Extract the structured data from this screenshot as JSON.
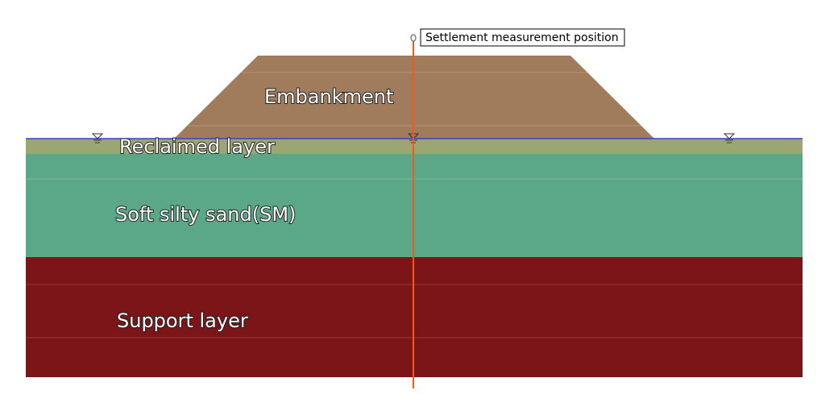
{
  "layers": [
    {
      "label": "Embankment"
    },
    {
      "label": "Reclaimed layer"
    },
    {
      "label": "Soft silty sand(SM)"
    },
    {
      "label": "Support layer"
    }
  ],
  "marker": {
    "label": "Settlement measurement position"
  }
}
